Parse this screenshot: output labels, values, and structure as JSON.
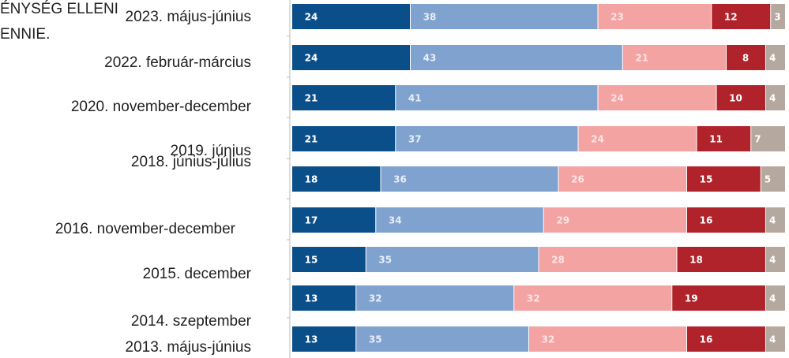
{
  "chart_data": {
    "type": "stacked-bar-horizontal",
    "annotations": [
      "ÉNYSÉG ELLENI",
      "ENNIE."
    ],
    "categories": [
      "2023. május-június",
      "2022. február-március",
      "2020. november-december",
      "2019. június",
      "2018. június-július",
      "2016. november-december",
      "2015. december",
      "2014. szeptember",
      "2013. május-június"
    ],
    "xlim": [
      0,
      100
    ],
    "series": [
      {
        "color": "#0b4f8a",
        "label_color": "#ffffff",
        "values": [
          24,
          24,
          21,
          21,
          18,
          17,
          15,
          13,
          13
        ]
      },
      {
        "color": "#7fa2cf",
        "label_color": "#e8eef7",
        "values": [
          38,
          43,
          41,
          37,
          36,
          34,
          35,
          32,
          35
        ]
      },
      {
        "color": "#f4a3a3",
        "label_color": "#fde4e4",
        "values": [
          23,
          21,
          24,
          24,
          26,
          29,
          28,
          32,
          32
        ]
      },
      {
        "color": "#b0232a",
        "label_color": "#ffffff",
        "values": [
          12,
          8,
          10,
          11,
          15,
          16,
          18,
          19,
          16
        ]
      },
      {
        "color": "#b5a89f",
        "label_color": "#ffffff",
        "values": [
          3,
          4,
          4,
          7,
          5,
          4,
          4,
          4,
          4
        ]
      }
    ]
  }
}
